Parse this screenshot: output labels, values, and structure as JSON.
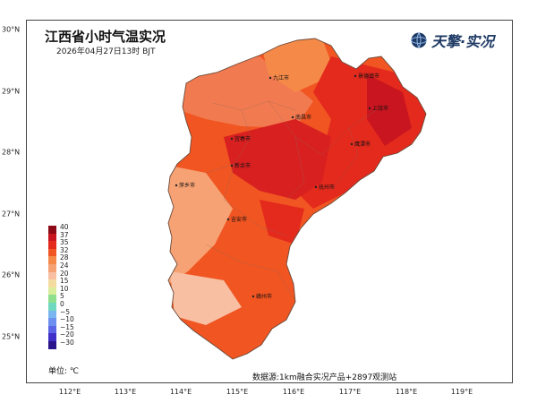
{
  "title": "江西省小时气温实况",
  "subtitle": "2026年04月27日13时  BJT",
  "brand": {
    "name": "天擎·实况",
    "icon": "globe-icon"
  },
  "source": "数据源:1km融合实况产品+2897观测站",
  "unit": "单位: ℃",
  "axes": {
    "x_ticks": [
      "112°E",
      "113°E",
      "114°E",
      "115°E",
      "116°E",
      "117°E",
      "118°E",
      "119°E"
    ],
    "y_ticks": [
      "30°N",
      "29°N",
      "28°N",
      "27°N",
      "26°N",
      "25°N"
    ]
  },
  "legend": [
    {
      "label": "40",
      "color": "#8c0b17"
    },
    {
      "label": "37",
      "color": "#c8151f"
    },
    {
      "label": "35",
      "color": "#e4291d"
    },
    {
      "label": "32",
      "color": "#f05522"
    },
    {
      "label": "28",
      "color": "#f58a48"
    },
    {
      "label": "24",
      "color": "#f6a274"
    },
    {
      "label": "20",
      "color": "#f8bfa2"
    },
    {
      "label": "15",
      "color": "#f4dca0"
    },
    {
      "label": "10",
      "color": "#d9ee9b"
    },
    {
      "label": "5",
      "color": "#8fe08e"
    },
    {
      "label": "0",
      "color": "#6ed8c0"
    },
    {
      "label": "−5",
      "color": "#79b6f0"
    },
    {
      "label": "−10",
      "color": "#6c8ff0"
    },
    {
      "label": "−15",
      "color": "#5a64e4"
    },
    {
      "label": "−20",
      "color": "#4030c8"
    },
    {
      "label": "−30",
      "color": "#2a148c"
    }
  ],
  "cities": [
    {
      "name": "九江市"
    },
    {
      "name": "景德镇市"
    },
    {
      "name": "南昌市"
    },
    {
      "name": "上饶市"
    },
    {
      "name": "宜春市"
    },
    {
      "name": "鹰潭市"
    },
    {
      "name": "新余市"
    },
    {
      "name": "萍乡市"
    },
    {
      "name": "抚州市"
    },
    {
      "name": "吉安市"
    },
    {
      "name": "赣州市"
    }
  ]
}
